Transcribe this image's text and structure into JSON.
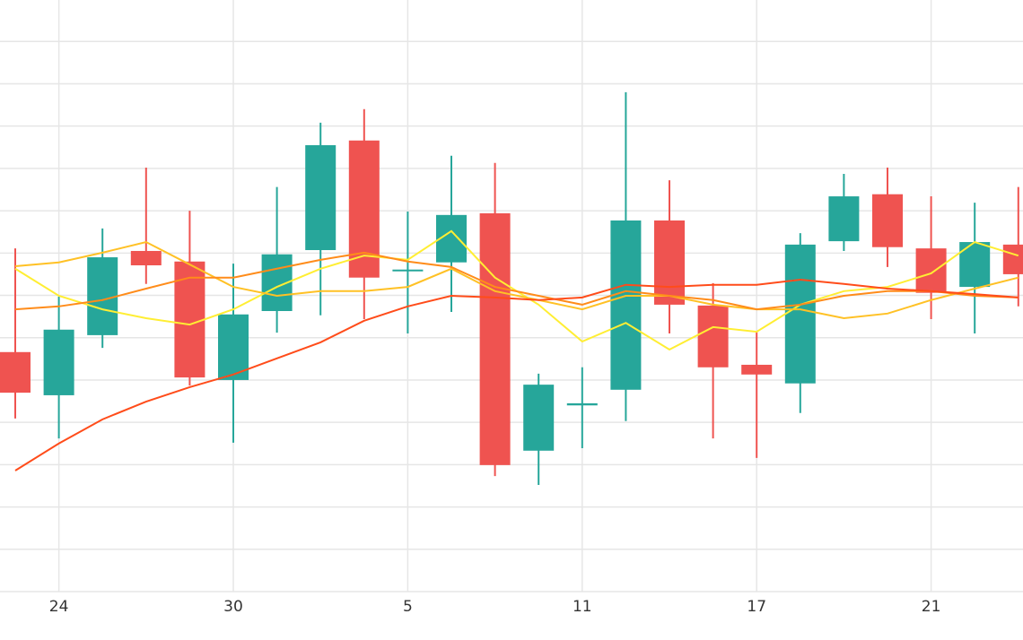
{
  "chart_data": {
    "type": "candlestick",
    "categories": [
      null,
      "24",
      null,
      null,
      null,
      "30",
      null,
      null,
      null,
      "5",
      null,
      null,
      null,
      "11",
      null,
      null,
      null,
      "17",
      null,
      null,
      null,
      "21",
      null,
      null
    ],
    "open": [
      5.66,
      4.64,
      6.06,
      8.05,
      7.8,
      5.0,
      6.63,
      8.07,
      10.66,
      7.61,
      7.78,
      8.94,
      3.33,
      4.4,
      4.77,
      8.77,
      6.76,
      5.36,
      4.92,
      8.28,
      9.39,
      8.11,
      7.2,
      8.2
    ],
    "high": [
      8.11,
      6.97,
      8.58,
      10.02,
      9.0,
      7.75,
      9.56,
      11.08,
      11.4,
      8.98,
      10.3,
      10.13,
      5.15,
      5.3,
      11.8,
      9.72,
      7.29,
      6.14,
      8.47,
      9.87,
      10.02,
      9.34,
      9.19,
      9.56
    ],
    "low": [
      4.09,
      3.62,
      5.76,
      7.27,
      4.87,
      3.52,
      6.12,
      6.53,
      6.44,
      6.1,
      6.61,
      2.73,
      2.52,
      3.39,
      4.03,
      6.1,
      3.62,
      3.16,
      4.22,
      8.05,
      7.67,
      6.44,
      6.1,
      6.74
    ],
    "close": [
      4.7,
      6.19,
      7.9,
      7.71,
      5.06,
      6.55,
      7.97,
      10.55,
      7.42,
      7.61,
      8.9,
      2.99,
      4.89,
      4.45,
      8.77,
      6.78,
      5.3,
      5.13,
      8.2,
      9.34,
      8.14,
      7.06,
      8.26,
      7.5
    ],
    "up_color": "#26a69a",
    "down_color": "#ef5350",
    "series": [
      {
        "color": "#ffee33",
        "values": [
          7.63,
          6.99,
          6.67,
          6.46,
          6.31,
          6.67,
          7.2,
          7.63,
          7.94,
          7.84,
          8.52,
          7.42,
          6.78,
          5.91,
          6.35,
          5.72,
          6.25,
          6.14,
          6.78,
          7.1,
          7.2,
          7.52,
          8.26,
          7.94
        ]
      },
      {
        "color": "#ffc125",
        "values": [
          7.69,
          7.78,
          8.01,
          8.26,
          7.73,
          7.2,
          6.99,
          7.1,
          7.1,
          7.2,
          7.63,
          7.1,
          6.89,
          6.67,
          6.99,
          6.99,
          6.78,
          6.67,
          6.67,
          6.46,
          6.57,
          6.89,
          7.16,
          7.42
        ]
      },
      {
        "color": "#ff8c1a",
        "values": [
          6.67,
          6.74,
          6.89,
          7.16,
          7.42,
          7.42,
          7.63,
          7.84,
          8.01,
          7.8,
          7.67,
          7.2,
          6.99,
          6.78,
          7.1,
          6.99,
          6.89,
          6.67,
          6.78,
          6.99,
          7.1,
          7.1,
          6.99,
          6.95
        ]
      },
      {
        "color": "#ff4c1a",
        "values": [
          2.86,
          3.5,
          4.07,
          4.49,
          4.83,
          5.13,
          5.51,
          5.89,
          6.4,
          6.74,
          6.99,
          6.95,
          6.89,
          6.95,
          7.25,
          7.2,
          7.25,
          7.25,
          7.37,
          7.27,
          7.16,
          7.1,
          7.03,
          6.95
        ]
      }
    ],
    "ylim": [
      0,
      13.98
    ],
    "yticks": [
      0,
      1,
      2,
      3,
      4,
      5,
      6,
      7,
      8,
      9,
      10,
      11,
      12,
      13
    ],
    "grid": true
  }
}
